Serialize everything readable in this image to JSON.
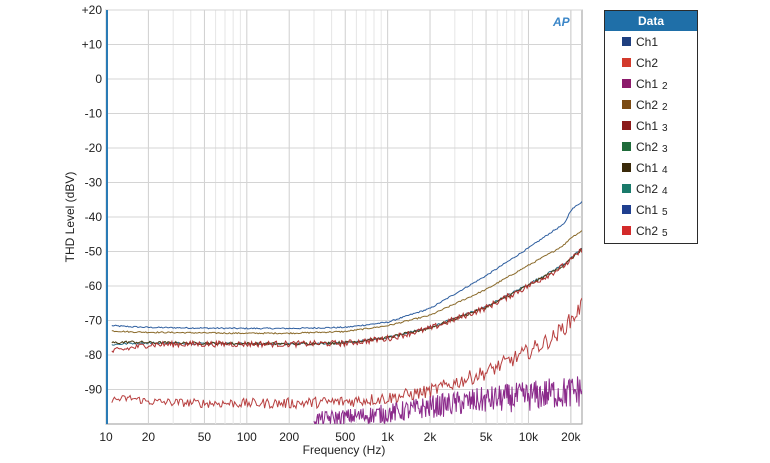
{
  "logo": {
    "text": "AP"
  },
  "legend": {
    "title": "Data",
    "items": [
      {
        "name": "Ch1",
        "sub": "",
        "color": "#1f3f7f"
      },
      {
        "name": "Ch2",
        "sub": "",
        "color": "#d33a2c"
      },
      {
        "name": "Ch1",
        "sub": "2",
        "color": "#8b1a6b"
      },
      {
        "name": "Ch2",
        "sub": "2",
        "color": "#7a4a12"
      },
      {
        "name": "Ch1",
        "sub": "3",
        "color": "#8b1a1a"
      },
      {
        "name": "Ch2",
        "sub": "3",
        "color": "#1f6b3a"
      },
      {
        "name": "Ch1",
        "sub": "4",
        "color": "#3a2a0a"
      },
      {
        "name": "Ch2",
        "sub": "4",
        "color": "#1a7a6a"
      },
      {
        "name": "Ch1",
        "sub": "5",
        "color": "#1f3f8f"
      },
      {
        "name": "Ch2",
        "sub": "5",
        "color": "#d32a2a"
      }
    ]
  },
  "chart_data": {
    "type": "line",
    "xlabel": "Frequency (Hz)",
    "ylabel": "THD Level (dBV)",
    "xscale": "log",
    "xlim": [
      10,
      24000
    ],
    "ylim": [
      -100,
      20
    ],
    "grid": true,
    "legend_position": "right",
    "xticks": [
      {
        "v": 10,
        "label": "10"
      },
      {
        "v": 20,
        "label": "20"
      },
      {
        "v": 50,
        "label": "50"
      },
      {
        "v": 100,
        "label": "100"
      },
      {
        "v": 200,
        "label": "200"
      },
      {
        "v": 500,
        "label": "500"
      },
      {
        "v": 1000,
        "label": "1k"
      },
      {
        "v": 2000,
        "label": "2k"
      },
      {
        "v": 5000,
        "label": "5k"
      },
      {
        "v": 10000,
        "label": "10k"
      },
      {
        "v": 20000,
        "label": "20k"
      }
    ],
    "yticks": [
      {
        "v": 20,
        "label": "+20"
      },
      {
        "v": 10,
        "label": "+10"
      },
      {
        "v": 0,
        "label": "0"
      },
      {
        "v": -10,
        "label": "-10"
      },
      {
        "v": -20,
        "label": "-20"
      },
      {
        "v": -30,
        "label": "-30"
      },
      {
        "v": -40,
        "label": "-40"
      },
      {
        "v": -50,
        "label": "-50"
      },
      {
        "v": -60,
        "label": "-60"
      },
      {
        "v": -70,
        "label": "-70"
      },
      {
        "v": -80,
        "label": "-80"
      },
      {
        "v": -90,
        "label": "-90"
      }
    ],
    "series": [
      {
        "name": "Ch1",
        "color": "#2f5fa0",
        "noise": 0.2,
        "x": [
          11,
          15,
          20,
          50,
          100,
          200,
          500,
          1000,
          2000,
          5000,
          10000,
          15000,
          18000,
          20000,
          24000
        ],
        "y": [
          -71.5,
          -71.8,
          -72.0,
          -72.2,
          -72.3,
          -72.3,
          -72.0,
          -70.5,
          -66.5,
          -57.0,
          -49.0,
          -44.0,
          -42.0,
          -38.0,
          -35.5
        ]
      },
      {
        "name": "Ch2",
        "color": "#8a6a2a",
        "noise": 0.2,
        "x": [
          11,
          15,
          20,
          50,
          100,
          200,
          500,
          1000,
          2000,
          5000,
          10000,
          15000,
          18000,
          20000,
          24000
        ],
        "y": [
          -73.0,
          -73.3,
          -73.4,
          -73.6,
          -73.7,
          -73.7,
          -73.2,
          -71.5,
          -68.5,
          -61.0,
          -54.0,
          -50.0,
          -48.0,
          -46.0,
          -44.0
        ]
      },
      {
        "name": "Ch1 2",
        "color": "#2f6f8a",
        "noise": 0.3,
        "x": [
          11,
          15,
          20,
          50,
          100,
          200,
          500,
          1000,
          2000,
          5000,
          10000,
          15000,
          18000,
          20000,
          24000
        ],
        "y": [
          -77.0,
          -76.6,
          -76.5,
          -76.6,
          -76.7,
          -76.8,
          -76.5,
          -75.0,
          -72.0,
          -66.0,
          -59.5,
          -55.5,
          -53.5,
          -52.0,
          -49.0
        ]
      },
      {
        "name": "Ch2 2",
        "color": "#4a3a10",
        "noise": 0.4,
        "x": [
          11,
          15,
          20,
          50,
          100,
          200,
          500,
          1000,
          2000,
          5000,
          10000,
          15000,
          18000,
          20000,
          24000
        ],
        "y": [
          -76.5,
          -76.2,
          -76.4,
          -76.6,
          -76.7,
          -76.8,
          -76.4,
          -75.0,
          -72.2,
          -66.2,
          -59.8,
          -55.8,
          -53.8,
          -52.2,
          -49.3
        ]
      },
      {
        "name": "Ch1 3",
        "color": "#b03030",
        "noise": 0.9,
        "x": [
          11,
          15,
          20,
          50,
          100,
          200,
          500,
          1000,
          2000,
          5000,
          10000,
          15000,
          18000,
          20000,
          24000
        ],
        "y": [
          -79.0,
          -78.0,
          -77.0,
          -76.8,
          -76.8,
          -76.8,
          -76.6,
          -75.2,
          -72.3,
          -66.3,
          -60.0,
          -56.0,
          -54.0,
          -52.5,
          -49.5
        ]
      },
      {
        "name": "Ch2 3",
        "color": "#b84040",
        "noise": 2.5,
        "x": [
          11,
          15,
          20,
          50,
          100,
          200,
          500,
          1000,
          2000,
          5000,
          10000,
          15000,
          20000,
          24000
        ],
        "y": [
          -93.0,
          -92.5,
          -93.5,
          -94.0,
          -94.0,
          -94.0,
          -93.5,
          -92.5,
          -90.5,
          -85.0,
          -79.0,
          -75.0,
          -70.0,
          -65.5
        ]
      },
      {
        "name": "Ch1 4",
        "color": "#8b2a8b",
        "noise": 5.0,
        "x": [
          300,
          500,
          1000,
          2000,
          5000,
          10000,
          15000,
          20000,
          24000
        ],
        "y": [
          -98.5,
          -98.0,
          -97.0,
          -95.0,
          -93.0,
          -92.0,
          -91.0,
          -91.0,
          -90.0
        ]
      }
    ]
  }
}
